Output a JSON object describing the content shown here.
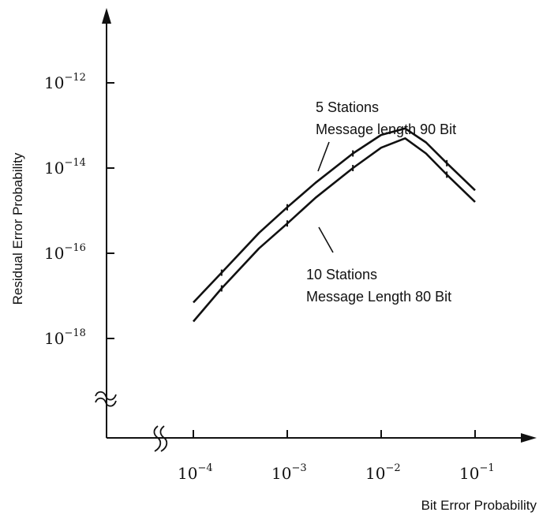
{
  "chart_data": {
    "type": "line",
    "title": "",
    "xlabel": "Bit Error Probability",
    "ylabel": "Residual Error Probability",
    "x_scale": "log",
    "y_scale": "log",
    "x_ticks": [
      {
        "base": "10",
        "exp": "-4",
        "value": 0.0001
      },
      {
        "base": "10",
        "exp": "-3",
        "value": 0.001
      },
      {
        "base": "10",
        "exp": "-2",
        "value": 0.01
      },
      {
        "base": "10",
        "exp": "-1",
        "value": 0.1
      }
    ],
    "y_ticks": [
      {
        "base": "10",
        "exp": "-12",
        "value": 1e-12
      },
      {
        "base": "10",
        "exp": "-14",
        "value": 1e-14
      },
      {
        "base": "10",
        "exp": "-16",
        "value": 1e-16
      },
      {
        "base": "10",
        "exp": "-18",
        "value": 1e-18
      }
    ],
    "axis_breaks": [
      "x",
      "y"
    ],
    "grid": false,
    "series": [
      {
        "name": "5 Stations Message length 90 Bit",
        "label_lines": [
          "5 Stations",
          "Message length 90 Bit"
        ],
        "x": [
          0.0001,
          0.0002,
          0.0005,
          0.001,
          0.002,
          0.005,
          0.01,
          0.018,
          0.03,
          0.05,
          0.1
        ],
        "y": [
          7e-18,
          3.5e-17,
          3e-16,
          1.2e-15,
          4.5e-15,
          2.2e-14,
          6e-14,
          8.5e-14,
          4e-14,
          1.3e-14,
          3e-15
        ]
      },
      {
        "name": "10 Stations Message Length 80 Bit",
        "label_lines": [
          "10 Stations",
          "Message Length 80 Bit"
        ],
        "x": [
          0.0001,
          0.0002,
          0.0005,
          0.001,
          0.002,
          0.005,
          0.01,
          0.018,
          0.03,
          0.05,
          0.1
        ],
        "y": [
          2.5e-18,
          1.5e-17,
          1.3e-16,
          5e-16,
          2e-15,
          1e-14,
          3e-14,
          5e-14,
          2.2e-14,
          7e-15,
          1.6e-15
        ]
      }
    ]
  }
}
